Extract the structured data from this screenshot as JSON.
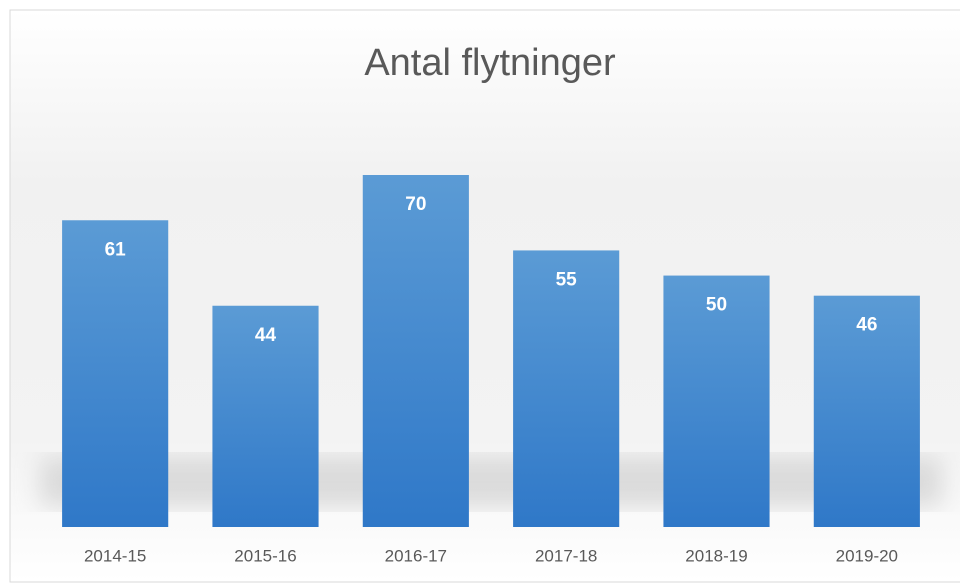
{
  "chart_data": {
    "type": "bar",
    "title": "Antal flytninger",
    "categories": [
      "2014-15",
      "2015-16",
      "2016-17",
      "2017-18",
      "2018-19",
      "2019-20"
    ],
    "values": [
      61,
      44,
      70,
      55,
      50,
      46
    ],
    "color": "#4a8fd6"
  }
}
